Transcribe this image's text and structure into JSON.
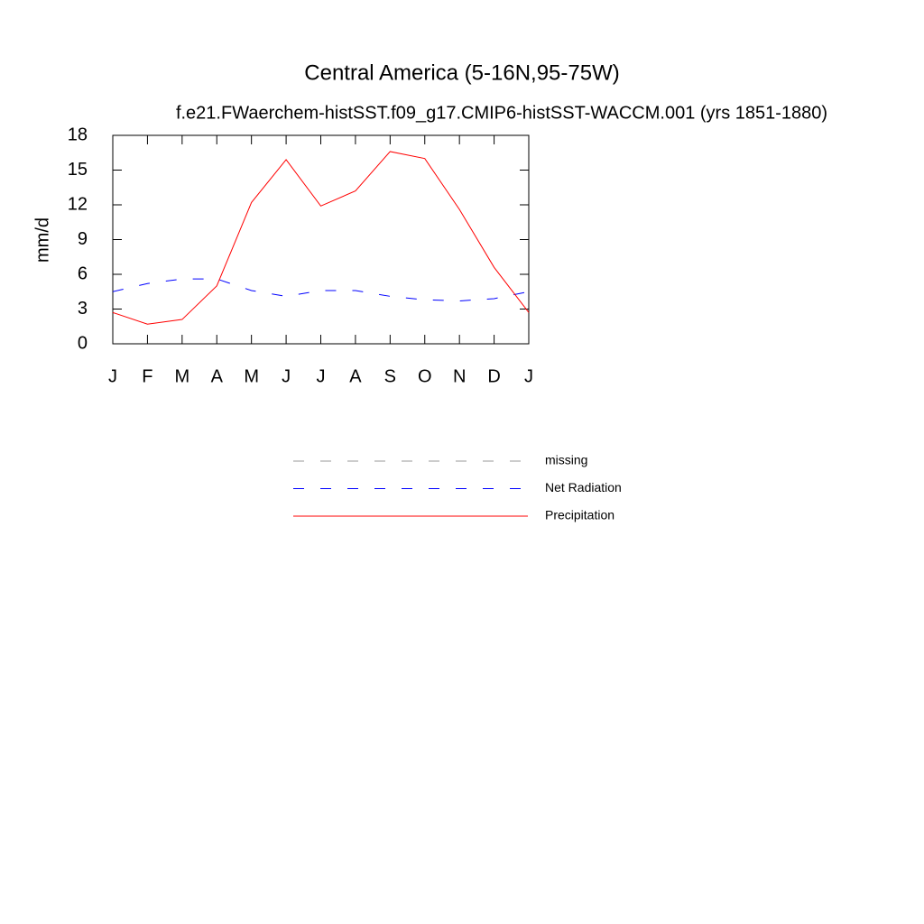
{
  "chart_data": {
    "type": "line",
    "title": "Central America (5-16N,95-75W)",
    "subtitle": "f.e21.FWaerchem-histSST.f09_g17.CMIP6-histSST-WACCM.001 (yrs 1851-1880)",
    "y_label": "mm/d",
    "categories": [
      "J",
      "F",
      "M",
      "A",
      "M",
      "J",
      "J",
      "A",
      "S",
      "O",
      "N",
      "D",
      "J"
    ],
    "ylim": [
      0,
      18
    ],
    "yticks": [
      0,
      3,
      6,
      9,
      12,
      15,
      18
    ],
    "legend": "below",
    "series": [
      {
        "name": "missing",
        "color": "#999999",
        "dash": "dashed",
        "values": [
          null,
          null,
          null,
          null,
          null,
          null,
          null,
          null,
          null,
          null,
          null,
          null,
          null
        ]
      },
      {
        "name": "Net Radiation",
        "color": "#0000ff",
        "dash": "dashed",
        "values": [
          4.5,
          5.2,
          5.6,
          5.6,
          4.6,
          4.1,
          4.6,
          4.6,
          4.1,
          3.8,
          3.7,
          3.9,
          4.5
        ]
      },
      {
        "name": "Precipitation",
        "color": "#ff0000",
        "dash": "solid",
        "values": [
          2.7,
          1.7,
          2.1,
          5.0,
          12.2,
          15.9,
          11.9,
          13.2,
          16.6,
          16.0,
          11.6,
          6.6,
          2.7
        ]
      }
    ]
  }
}
